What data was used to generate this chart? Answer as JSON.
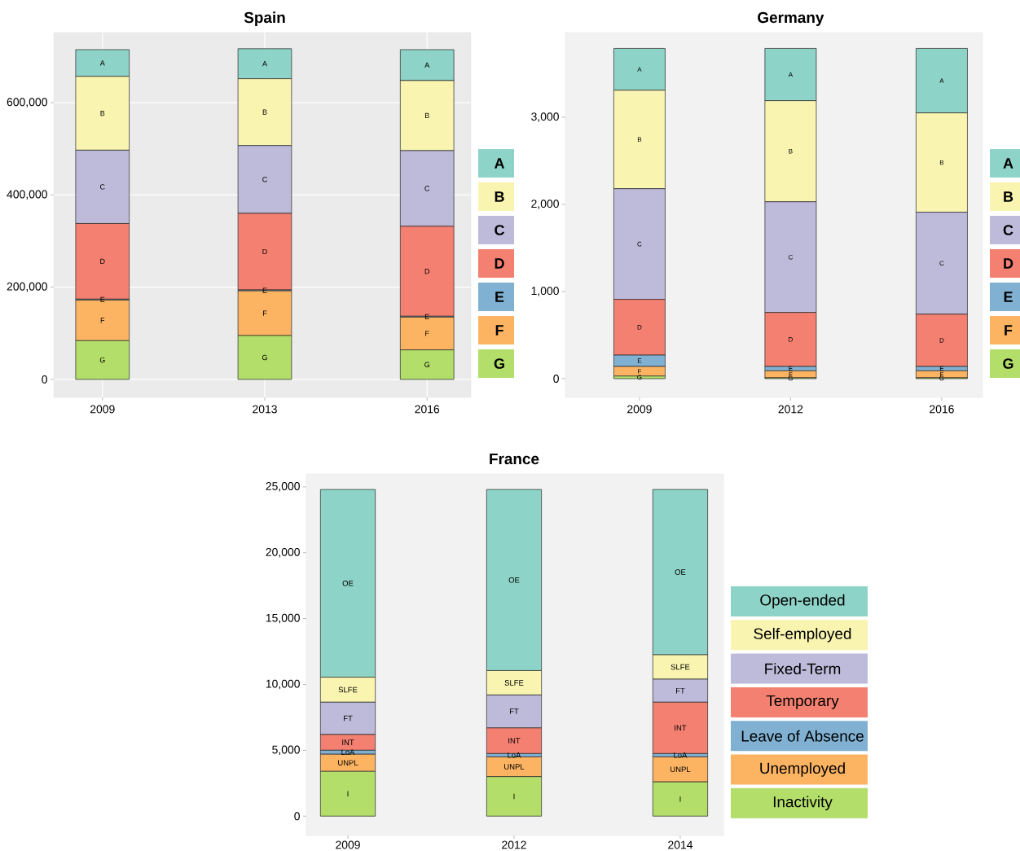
{
  "chart_data": [
    {
      "type": "bar",
      "title": "Spain",
      "stacked": true,
      "grid": true,
      "legend": "right",
      "categories": [
        "2009",
        "2013",
        "2016"
      ],
      "ylim": [
        -39000,
        752000
      ],
      "yticks": [
        {
          "value": 0,
          "label": "0"
        },
        {
          "value": 200000,
          "label": "200,000"
        },
        {
          "value": 400000,
          "label": "400,000"
        },
        {
          "value": 600000,
          "label": "600,000"
        }
      ],
      "series": [
        {
          "name": "G",
          "color": "#b3de69",
          "values": [
            84000,
            95000,
            64000
          ],
          "value_labels": [
            "G",
            "G",
            "G"
          ]
        },
        {
          "name": "F",
          "color": "#fdb462",
          "values": [
            88000,
            97000,
            71000
          ],
          "value_labels": [
            "F",
            "F",
            "F"
          ]
        },
        {
          "name": "E",
          "color": "#80b1d3",
          "values": [
            2000,
            2000,
            2000
          ],
          "value_labels": [
            "E",
            "E",
            "E"
          ]
        },
        {
          "name": "D",
          "color": "#f38071",
          "values": [
            164000,
            166000,
            195000
          ],
          "value_labels": [
            "D",
            "D",
            "D"
          ]
        },
        {
          "name": "C",
          "color": "#bebada",
          "values": [
            159000,
            147000,
            164000
          ],
          "value_labels": [
            "C",
            "C",
            "C"
          ]
        },
        {
          "name": "B",
          "color": "#f9f4b0",
          "values": [
            160000,
            145000,
            152000
          ],
          "value_labels": [
            "B",
            "B",
            "B"
          ]
        },
        {
          "name": "A",
          "color": "#8dd3c7",
          "values": [
            58000,
            65000,
            67000
          ],
          "value_labels": [
            "A",
            "A",
            "A"
          ]
        }
      ]
    },
    {
      "type": "bar",
      "title": "Germany",
      "stacked": true,
      "legend": "right",
      "categories": [
        "2009",
        "2012",
        "2016"
      ],
      "ylim": [
        -215,
        3972
      ],
      "yticks": [
        {
          "value": 0,
          "label": "0"
        },
        {
          "value": 1000,
          "label": "1,000"
        },
        {
          "value": 2000,
          "label": "2,000"
        },
        {
          "value": 3000,
          "label": "3,000"
        }
      ],
      "series": [
        {
          "name": "G",
          "color": "#b3de69",
          "values": [
            30,
            10,
            10
          ],
          "value_labels": [
            "G",
            "G",
            "G"
          ]
        },
        {
          "name": "F",
          "color": "#fdb462",
          "values": [
            110,
            80,
            80
          ],
          "value_labels": [
            "F",
            "F",
            "F"
          ]
        },
        {
          "name": "E",
          "color": "#80b1d3",
          "values": [
            130,
            50,
            50
          ],
          "value_labels": [
            "E",
            "E",
            "E"
          ]
        },
        {
          "name": "D",
          "color": "#f38071",
          "values": [
            640,
            620,
            600
          ],
          "value_labels": [
            "D",
            "D",
            "D"
          ]
        },
        {
          "name": "C",
          "color": "#bebada",
          "values": [
            1270,
            1270,
            1170
          ],
          "value_labels": [
            "C",
            "C",
            "C"
          ]
        },
        {
          "name": "B",
          "color": "#f9f4b0",
          "values": [
            1130,
            1160,
            1140
          ],
          "value_labels": [
            "B",
            "B",
            "B"
          ]
        },
        {
          "name": "A",
          "color": "#8dd3c7",
          "values": [
            480,
            600,
            740
          ],
          "value_labels": [
            "A",
            "A",
            "A"
          ]
        }
      ]
    },
    {
      "type": "bar",
      "title": "France",
      "stacked": true,
      "legend": "right",
      "categories": [
        "2009",
        "2012",
        "2014"
      ],
      "ylim": [
        -1470,
        25980
      ],
      "yticks": [
        {
          "value": 0,
          "label": "0"
        },
        {
          "value": 5000,
          "label": "5,000"
        },
        {
          "value": 10000,
          "label": "10,000"
        },
        {
          "value": 15000,
          "label": "15,000"
        },
        {
          "value": 20000,
          "label": "20,000"
        },
        {
          "value": 25000,
          "label": "25,000"
        }
      ],
      "series": [
        {
          "name": "Inactivity",
          "color": "#b3de69",
          "values": [
            3400,
            3000,
            2600
          ],
          "value_labels": [
            "I",
            "I",
            "I"
          ]
        },
        {
          "name": "Unemployed",
          "color": "#fdb462",
          "values": [
            1300,
            1500,
            1900
          ],
          "value_labels": [
            "UNPL",
            "UNPL",
            "UNPL"
          ]
        },
        {
          "name": "Leave of Absence",
          "color": "#80b1d3",
          "values": [
            300,
            250,
            250
          ],
          "value_labels": [
            "LoA",
            "LoA",
            "LoA"
          ]
        },
        {
          "name": "Temporary",
          "color": "#f38071",
          "values": [
            1200,
            1950,
            3900
          ],
          "value_labels": [
            "INT",
            "INT",
            "INT"
          ]
        },
        {
          "name": "Fixed-Term",
          "color": "#bebada",
          "values": [
            2450,
            2500,
            1750
          ],
          "value_labels": [
            "FT",
            "FT",
            "FT"
          ]
        },
        {
          "name": "Self-employed",
          "color": "#f9f4b0",
          "values": [
            1900,
            1850,
            1850
          ],
          "value_labels": [
            "SLFE",
            "SLFE",
            "SLFE"
          ]
        },
        {
          "name": "Open-ended",
          "color": "#8dd3c7",
          "values": [
            14250,
            13750,
            12550
          ],
          "value_labels": [
            "OE",
            "OE",
            "OE"
          ]
        }
      ]
    }
  ]
}
